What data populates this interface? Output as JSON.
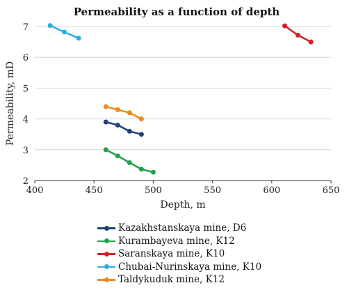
{
  "chart_data": {
    "type": "line",
    "title": "Permeability as a function of depth",
    "xlabel": "Depth, m",
    "ylabel": "Permeability, mD",
    "xlim": [
      400,
      650
    ],
    "ylim": [
      2,
      7
    ],
    "xticks": [
      400,
      450,
      500,
      550,
      600,
      650
    ],
    "yticks": [
      2,
      3,
      4,
      5,
      6,
      7
    ],
    "grid": "horizontal",
    "legend_position": "bottom",
    "series": [
      {
        "name": "Kazakhstanskaya mine, D6",
        "color": "#1f3f7a",
        "x": [
          460,
          470,
          480,
          490
        ],
        "y": [
          3.9,
          3.8,
          3.6,
          3.5
        ]
      },
      {
        "name": "Kurambayeva mine, K12",
        "color": "#22a04a",
        "x": [
          460,
          470,
          480,
          490,
          500
        ],
        "y": [
          3.0,
          2.8,
          2.58,
          2.37,
          2.27
        ]
      },
      {
        "name": "Saranskaya mine, K10",
        "color": "#d0202a",
        "x": [
          611,
          622,
          633
        ],
        "y": [
          7.02,
          6.72,
          6.5
        ]
      },
      {
        "name": "Chubai-Nurinskaya mine, K10",
        "color": "#2aafe0",
        "x": [
          413,
          425,
          437
        ],
        "y": [
          7.03,
          6.82,
          6.62
        ]
      },
      {
        "name": "Taldykuduk mine, K12",
        "color": "#ec8b1e",
        "x": [
          460,
          470,
          480,
          490
        ],
        "y": [
          4.4,
          4.3,
          4.2,
          4.0
        ]
      }
    ]
  }
}
